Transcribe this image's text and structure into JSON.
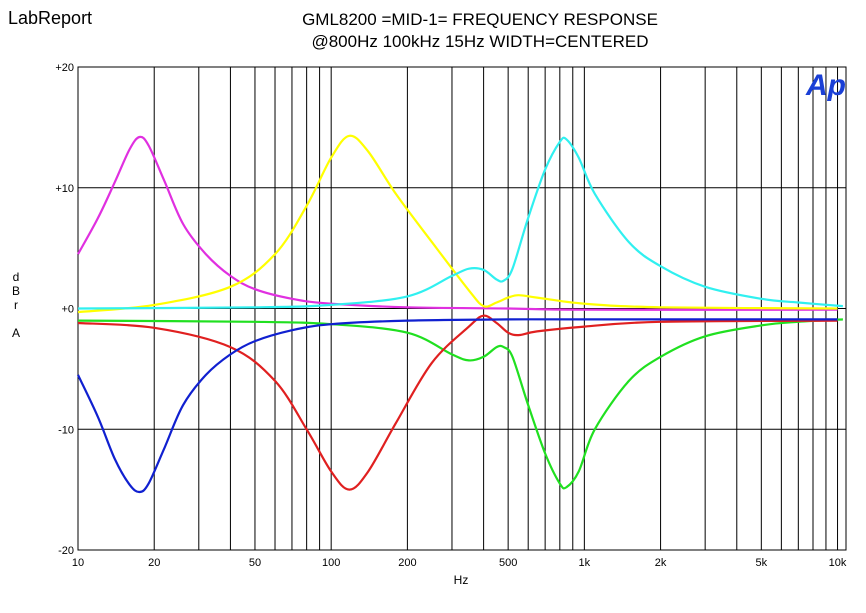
{
  "header": {
    "brand": "LabReport",
    "title_line1": "GML8200 =MID-1= FREQUENCY RESPONSE",
    "title_line2": "@800Hz 100kHz 15Hz WIDTH=CENTERED"
  },
  "logo": {
    "text": "Ap",
    "color": "#1a3fd6"
  },
  "chart_data": {
    "type": "line",
    "xlabel": "Hz",
    "ylabel": [
      "d",
      "B",
      "r",
      "",
      "A"
    ],
    "x_scale": "log",
    "xlim": [
      10,
      10800
    ],
    "ylim": [
      -20,
      20
    ],
    "grid": true,
    "x_ticks": [
      {
        "value": 10,
        "label": "10"
      },
      {
        "value": 20,
        "label": "20"
      },
      {
        "value": 50,
        "label": "50"
      },
      {
        "value": 100,
        "label": "100"
      },
      {
        "value": 200,
        "label": "200"
      },
      {
        "value": 500,
        "label": "500"
      },
      {
        "value": 1000,
        "label": "1k"
      },
      {
        "value": 2000,
        "label": "2k"
      },
      {
        "value": 5000,
        "label": "5k"
      },
      {
        "value": 10000,
        "label": "10k"
      }
    ],
    "y_ticks": [
      {
        "value": 20,
        "label": "+20"
      },
      {
        "value": 10,
        "label": "+10"
      },
      {
        "value": 0,
        "label": "+0"
      },
      {
        "value": -10,
        "label": "-10"
      },
      {
        "value": -20,
        "label": "-20"
      }
    ],
    "series": [
      {
        "color": "#e030e0",
        "x": [
          10,
          12,
          14,
          16,
          17.5,
          19,
          22,
          26,
          32,
          40,
          50,
          70,
          100,
          200,
          500,
          1000,
          10000
        ],
        "y": [
          4.5,
          7.5,
          10.5,
          13.2,
          14.2,
          13.5,
          10.5,
          7.0,
          4.5,
          2.7,
          1.6,
          0.8,
          0.4,
          0.1,
          0.0,
          -0.1,
          -0.1
        ]
      },
      {
        "color": "#ffff00",
        "x": [
          10,
          20,
          40,
          60,
          80,
          100,
          118,
          140,
          180,
          250,
          350,
          400,
          450,
          500,
          550,
          650,
          1000,
          2000,
          10000
        ],
        "y": [
          -0.3,
          0.3,
          1.8,
          4.5,
          8.5,
          12.5,
          14.3,
          13.0,
          9.5,
          5.5,
          1.5,
          0.2,
          0.5,
          0.9,
          1.1,
          0.9,
          0.4,
          0.1,
          0.0
        ]
      },
      {
        "color": "#30f0f0",
        "x": [
          10,
          50,
          100,
          200,
          300,
          350,
          400,
          450,
          480,
          520,
          600,
          700,
          800,
          850,
          950,
          1100,
          1500,
          2000,
          3000,
          5000,
          7000,
          10500
        ],
        "y": [
          0.0,
          0.1,
          0.3,
          1.0,
          2.7,
          3.3,
          3.2,
          2.4,
          2.3,
          3.3,
          7.5,
          11.5,
          13.8,
          14.0,
          12.5,
          9.5,
          5.5,
          3.5,
          1.8,
          0.8,
          0.5,
          0.2
        ]
      },
      {
        "color": "#20e020",
        "x": [
          10,
          50,
          100,
          200,
          300,
          350,
          400,
          450,
          480,
          520,
          600,
          700,
          800,
          850,
          950,
          1100,
          1500,
          2000,
          3000,
          5000,
          7000,
          10500
        ],
        "y": [
          -1.0,
          -1.1,
          -1.3,
          -2.0,
          -3.8,
          -4.3,
          -4.0,
          -3.2,
          -3.2,
          -4.0,
          -8.0,
          -12.0,
          -14.5,
          -14.8,
          -13.5,
          -10.0,
          -6.0,
          -4.0,
          -2.3,
          -1.4,
          -1.1,
          -0.9
        ]
      },
      {
        "color": "#e02020",
        "x": [
          10,
          20,
          40,
          60,
          80,
          100,
          118,
          140,
          180,
          250,
          350,
          400,
          450,
          500,
          550,
          650,
          1000,
          2000,
          10000
        ],
        "y": [
          -1.2,
          -1.6,
          -3.2,
          -6.0,
          -10.0,
          -13.5,
          -15.0,
          -13.5,
          -9.5,
          -4.5,
          -1.5,
          -0.6,
          -1.2,
          -2.0,
          -2.2,
          -1.9,
          -1.5,
          -1.1,
          -1.0
        ]
      },
      {
        "color": "#1020d0",
        "x": [
          10,
          12,
          14,
          16,
          17.5,
          19,
          22,
          26,
          32,
          40,
          50,
          70,
          100,
          200,
          500,
          1000,
          10000
        ],
        "y": [
          -5.5,
          -9.0,
          -12.5,
          -14.6,
          -15.2,
          -14.5,
          -11.5,
          -8.0,
          -5.5,
          -3.8,
          -2.7,
          -1.8,
          -1.3,
          -1.0,
          -0.9,
          -0.9,
          -0.9
        ]
      }
    ]
  }
}
